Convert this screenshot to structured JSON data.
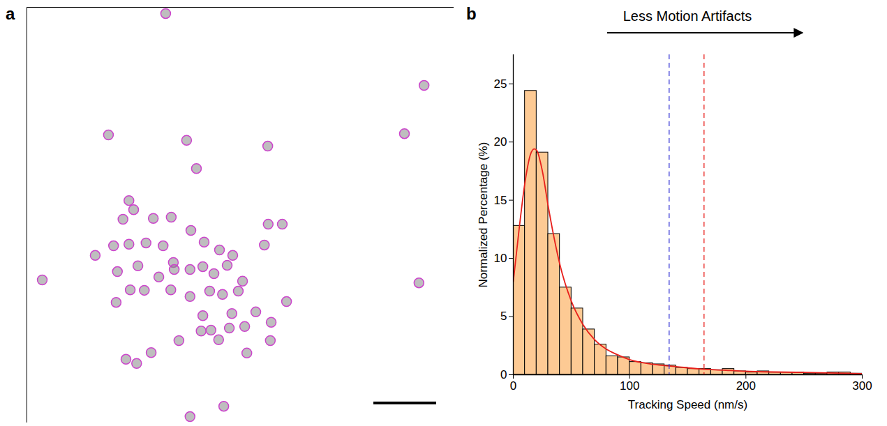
{
  "chart_data": [
    {
      "type": "scatter",
      "panel_label": "a",
      "color": "#cc44cc",
      "marker": "circle",
      "tick_labels": false,
      "xlim": [
        0,
        100
      ],
      "ylim": [
        0,
        100
      ],
      "x": [
        32.5,
        93.0,
        19.1,
        88.4,
        56.4,
        37.4,
        39.7,
        23.9,
        25.0,
        29.6,
        22.5,
        33.8,
        56.5,
        55.6,
        59.8,
        16.0,
        20.3,
        23.9,
        27.9,
        31.9,
        38.4,
        41.5,
        45.1,
        48.2,
        34.3,
        34.5,
        3.6,
        21.2,
        26.0,
        30.9,
        38.2,
        41.2,
        43.8,
        46.9,
        50.5,
        20.9,
        24.2,
        27.5,
        33.7,
        38.2,
        42.8,
        45.8,
        49.5,
        60.8,
        91.8,
        41.2,
        48.0,
        53.6,
        57.2,
        40.8,
        43.1,
        47.4,
        35.6,
        44.9,
        51.0,
        29.1,
        23.2,
        57.0,
        51.5,
        46.1,
        38.2,
        25.7
      ],
      "values": [
        98.5,
        81.2,
        69.3,
        69.6,
        66.6,
        68.0,
        61.2,
        53.5,
        51.3,
        49.2,
        49.0,
        49.5,
        47.8,
        42.8,
        47.8,
        40.3,
        42.6,
        43.0,
        43.3,
        42.6,
        46.3,
        43.5,
        41.6,
        40.3,
        38.6,
        36.9,
        34.4,
        36.4,
        37.8,
        35.1,
        36.9,
        37.6,
        35.9,
        37.9,
        34.1,
        29.0,
        32.0,
        31.9,
        32.0,
        30.4,
        31.7,
        30.9,
        31.7,
        29.2,
        33.7,
        25.8,
        26.3,
        26.7,
        24.2,
        22.1,
        22.3,
        22.8,
        19.8,
        20.0,
        23.2,
        16.9,
        15.3,
        19.8,
        16.8,
        4.0,
        1.5,
        14.3
      ]
    },
    {
      "type": "histogram",
      "panel_label": "b",
      "annotation": "Less Motion Artifacts",
      "x_label": "Tracking Speed (nm/s)",
      "y_label": "Normalized Percentage (%)",
      "color": "#fdca94",
      "bins": [
        0,
        10,
        20,
        30,
        40,
        50,
        60,
        70,
        80,
        90,
        100,
        110,
        120,
        130,
        140,
        150,
        160,
        170,
        180,
        190,
        200,
        210,
        220,
        230,
        240,
        250,
        260,
        270,
        280,
        290,
        300
      ],
      "values": [
        12.8,
        24.4,
        19.1,
        12.1,
        7.5,
        5.7,
        3.9,
        2.6,
        1.6,
        1.5,
        1.1,
        1.0,
        0.9,
        0.8,
        0.6,
        0.5,
        0.5,
        0.4,
        0.5,
        0.3,
        0.2,
        0.3,
        0.2,
        0.2,
        0.2,
        0.1,
        0.1,
        0.2,
        0.2,
        0.1
      ],
      "series": [
        {
          "type": "line",
          "color": "#e8201c",
          "x": [
            0,
            5,
            10,
            15,
            18,
            20,
            25,
            30,
            35,
            40,
            50,
            60,
            70,
            80,
            90,
            100,
            120,
            140,
            160,
            180,
            200,
            250,
            300
          ],
          "values": [
            8,
            12.5,
            16.5,
            19,
            19.4,
            19.3,
            17.5,
            14.5,
            11.8,
            9.5,
            6.3,
            4.3,
            3.0,
            2.2,
            1.7,
            1.3,
            0.9,
            0.7,
            0.5,
            0.4,
            0.3,
            0.2,
            0.1
          ]
        }
      ],
      "reference_lines": [
        {
          "x": 134,
          "color": "#3b3bd6",
          "line_style": "dashed"
        },
        {
          "x": 164,
          "color": "#e8201c",
          "line_style": "dashed"
        }
      ],
      "xlim": [
        0,
        300
      ],
      "xticks": [
        0,
        100,
        200,
        300
      ],
      "ylim": [
        0,
        27.5
      ],
      "yticks": [
        0,
        5,
        10,
        15,
        20,
        25
      ]
    }
  ]
}
